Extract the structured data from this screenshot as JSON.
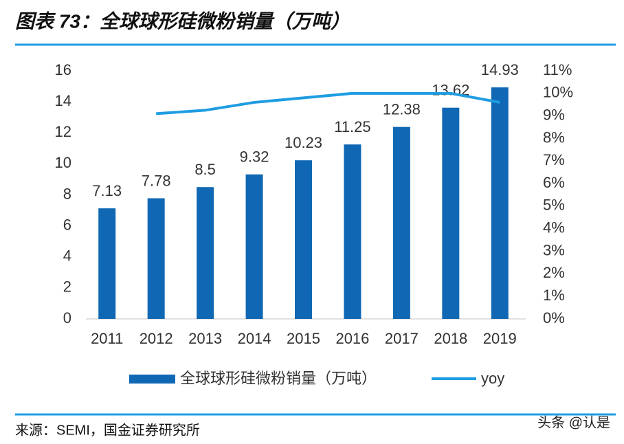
{
  "chart_data": {
    "type": "bar-line",
    "title": "图表 73：全球球形硅微粉销量（万吨）",
    "source": "来源：SEMI，国金证券研究所",
    "watermark": "头条 @认是",
    "categories": [
      "2011",
      "2012",
      "2013",
      "2014",
      "2015",
      "2016",
      "2017",
      "2018",
      "2019"
    ],
    "series": [
      {
        "name": "全球球形硅微粉销量（万吨）",
        "color": "#1068b4",
        "values": [
          7.13,
          7.78,
          8.5,
          9.32,
          10.23,
          11.25,
          12.38,
          13.62,
          14.93
        ]
      },
      {
        "name": "yoy",
        "color": "#1f9de2",
        "axis": "y2",
        "values": [
          null,
          9.1,
          9.25,
          9.6,
          9.8,
          10.0,
          10.0,
          10.0,
          9.6
        ]
      }
    ],
    "ylim": [
      0,
      16
    ],
    "yticks": [
      0,
      2,
      4,
      6,
      8,
      10,
      12,
      14,
      16
    ],
    "y2lim": [
      0,
      11
    ],
    "y2ticks": [
      {
        "value": 0,
        "label": "0%"
      },
      {
        "value": 1,
        "label": "1%"
      },
      {
        "value": 2,
        "label": "2%"
      },
      {
        "value": 3,
        "label": "3%"
      },
      {
        "value": 4,
        "label": "4%"
      },
      {
        "value": 5,
        "label": "5%"
      },
      {
        "value": 6,
        "label": "6%"
      },
      {
        "value": 7,
        "label": "7%"
      },
      {
        "value": 8,
        "label": "8%"
      },
      {
        "value": 9,
        "label": "9%"
      },
      {
        "value": 10,
        "label": "10%"
      },
      {
        "value": 11,
        "label": "11%"
      }
    ]
  }
}
